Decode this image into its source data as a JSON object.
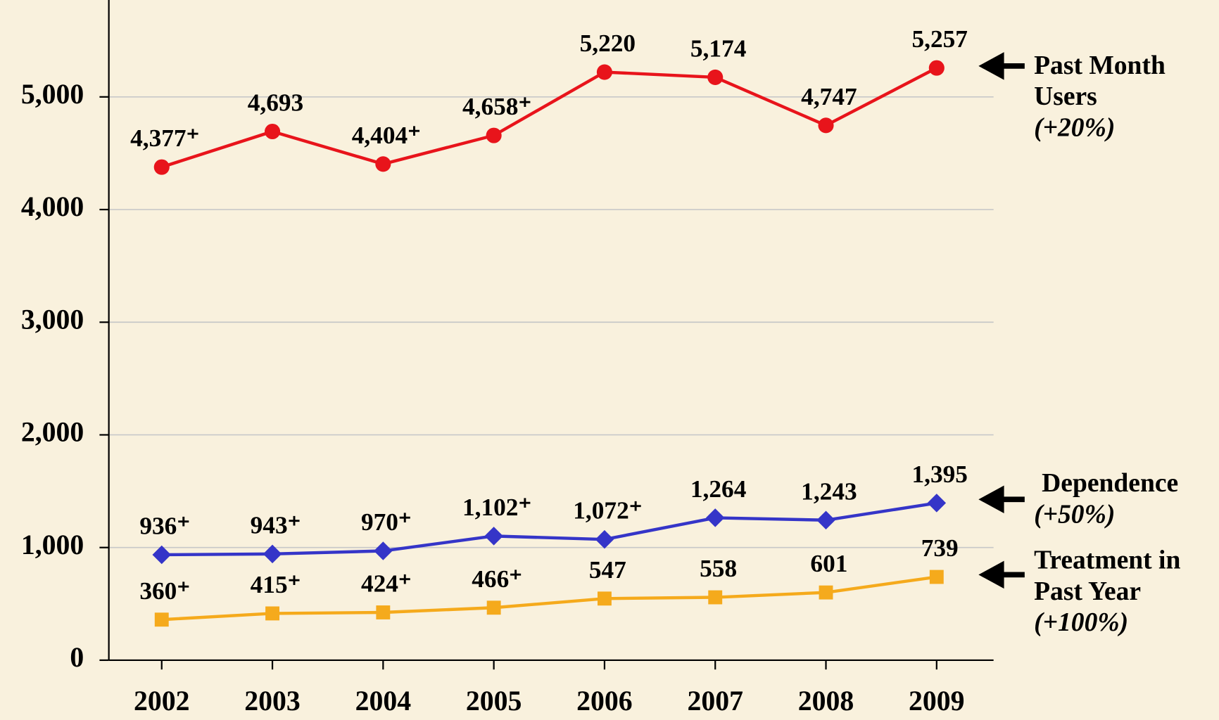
{
  "chart_data": {
    "type": "line",
    "categories": [
      "2002",
      "2003",
      "2004",
      "2005",
      "2006",
      "2007",
      "2008",
      "2009"
    ],
    "ylim": [
      0,
      5860
    ],
    "yticks": [
      0,
      {
        "value": 1000,
        "label": "1,000"
      },
      {
        "value": 2000,
        "label": "2,000"
      },
      {
        "value": 3000,
        "label": "3,000"
      },
      {
        "value": 4000,
        "label": "4,000"
      },
      {
        "value": 5000,
        "label": "5,000"
      }
    ],
    "grid": true,
    "series": [
      {
        "name": "Past Month Users",
        "change": "(+20%)",
        "color": "#e8141b",
        "marker": "circle",
        "values": [
          4377,
          4693,
          4404,
          4658,
          5220,
          5174,
          4747,
          5257
        ],
        "value_labels": [
          "4,377⁺",
          "4,693",
          "4,404⁺",
          "4,658⁺",
          "5,220",
          "5,174",
          "4,747",
          "5,257"
        ]
      },
      {
        "name": "Dependence",
        "change": "(+50%)",
        "color": "#3535c8",
        "marker": "diamond",
        "values": [
          936,
          943,
          970,
          1102,
          1072,
          1264,
          1243,
          1395
        ],
        "value_labels": [
          "936⁺",
          "943⁺",
          "970⁺",
          "1,102⁺",
          "1,072⁺",
          "1,264",
          "1,243",
          "1,395"
        ]
      },
      {
        "name": "Treatment in Past Year",
        "change": "(+100%)",
        "color": "#f5aa1c",
        "marker": "square",
        "values": [
          360,
          415,
          424,
          466,
          547,
          558,
          601,
          739
        ],
        "value_labels": [
          "360⁺",
          "415⁺",
          "424⁺",
          "466⁺",
          "547",
          "558",
          "601",
          "739"
        ]
      }
    ]
  }
}
